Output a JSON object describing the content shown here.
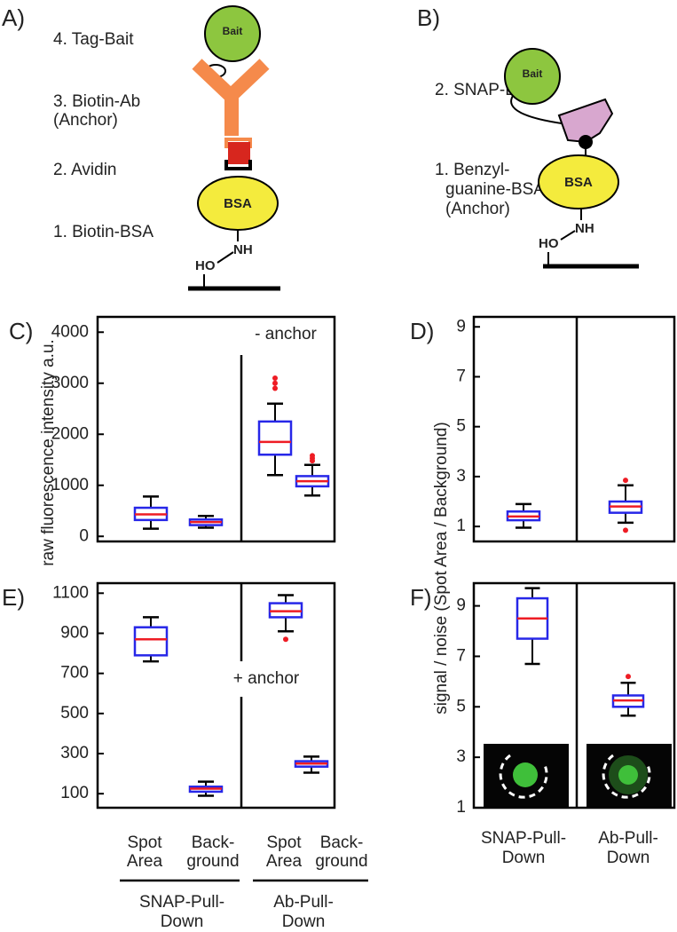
{
  "diagrams": {
    "A": {
      "letter": "A)",
      "labels": [
        [
          "4. Tag-Bait"
        ],
        [
          "3. Biotin-Ab",
          " (Anchor)"
        ],
        [
          "2. Avidin"
        ],
        [
          "1. Biotin-BSA"
        ]
      ],
      "bait": "Bait",
      "bsa": "BSA",
      "nh": "NH",
      "ho": "HO"
    },
    "B": {
      "letter": "B)",
      "labels": [
        [
          "2. SNAP-Bait"
        ],
        [
          "1. Benzyl-",
          "guanine-BSA",
          "(Anchor)"
        ]
      ],
      "bait": "Bait",
      "bsa": "BSA",
      "nh": "NH",
      "ho": "HO"
    }
  },
  "chart_data": [
    {
      "type": "box",
      "panel": "C)",
      "annotation": "- anchor",
      "ylabel": "raw fluorescence intensity a.u.",
      "ylim": [
        -100,
        4300
      ],
      "yticks": [
        0,
        1000,
        2000,
        3000,
        4000
      ],
      "box_color": "#2727e8",
      "median_color": "#ee1c24",
      "outlier_color": "#ee1c24",
      "boxes": [
        {
          "min": 150,
          "q1": 320,
          "median": 430,
          "q3": 560,
          "max": 780,
          "outliers": []
        },
        {
          "min": 170,
          "q1": 220,
          "median": 280,
          "q3": 330,
          "max": 400,
          "outliers": []
        },
        {
          "min": 1200,
          "q1": 1600,
          "median": 1850,
          "q3": 2250,
          "max": 2600,
          "outliers": [
            2900,
            3000,
            3100
          ]
        },
        {
          "min": 800,
          "q1": 980,
          "median": 1080,
          "q3": 1180,
          "max": 1400,
          "outliers": [
            1480,
            1530,
            1580
          ]
        }
      ]
    },
    {
      "type": "box",
      "panel": "D)",
      "ylabel": "signal / noise (Spot Area / Background)",
      "ylim": [
        0.4,
        9.4
      ],
      "yticks": [
        1,
        3,
        5,
        7,
        9
      ],
      "box_color": "#2727e8",
      "median_color": "#ee1c24",
      "outlier_color": "#ee1c24",
      "boxes": [
        {
          "min": 0.95,
          "q1": 1.25,
          "median": 1.4,
          "q3": 1.6,
          "max": 1.9,
          "outliers": []
        },
        {
          "min": 1.15,
          "q1": 1.55,
          "median": 1.8,
          "q3": 2.0,
          "max": 2.65,
          "outliers": [
            0.85,
            2.85
          ]
        }
      ]
    },
    {
      "type": "box",
      "panel": "E)",
      "annotation": "+ anchor",
      "ylim": [
        30,
        1150
      ],
      "yticks": [
        100,
        300,
        500,
        700,
        900,
        1100
      ],
      "box_color": "#2727e8",
      "median_color": "#ee1c24",
      "outlier_color": "#ee1c24",
      "categories": [
        [
          "Spot",
          "Area"
        ],
        [
          "Back-",
          "ground"
        ],
        [
          "Spot",
          "Area"
        ],
        [
          "Back-",
          "ground"
        ]
      ],
      "groups": [
        [
          "SNAP-Pull-",
          "Down"
        ],
        [
          "Ab-Pull-",
          "Down"
        ]
      ],
      "boxes": [
        {
          "min": 760,
          "q1": 790,
          "median": 870,
          "q3": 930,
          "max": 980,
          "outliers": []
        },
        {
          "min": 90,
          "q1": 110,
          "median": 125,
          "q3": 135,
          "max": 160,
          "outliers": []
        },
        {
          "min": 910,
          "q1": 980,
          "median": 1010,
          "q3": 1050,
          "max": 1090,
          "outliers": [
            870
          ]
        },
        {
          "min": 205,
          "q1": 235,
          "median": 250,
          "q3": 262,
          "max": 285,
          "outliers": []
        }
      ]
    },
    {
      "type": "box",
      "panel": "F)",
      "ylim": [
        1,
        9.9
      ],
      "yticks": [
        1,
        3,
        5,
        7,
        9
      ],
      "box_color": "#2727e8",
      "median_color": "#ee1c24",
      "outlier_color": "#ee1c24",
      "groups": [
        [
          "SNAP-Pull-",
          "Down"
        ],
        [
          "Ab-Pull-",
          "Down"
        ]
      ],
      "boxes": [
        {
          "min": 6.7,
          "q1": 7.7,
          "median": 8.5,
          "q3": 9.3,
          "max": 9.7,
          "outliers": []
        },
        {
          "min": 4.65,
          "q1": 5.0,
          "median": 5.25,
          "q3": 5.45,
          "max": 5.95,
          "outliers": [
            6.2
          ]
        }
      ]
    }
  ]
}
